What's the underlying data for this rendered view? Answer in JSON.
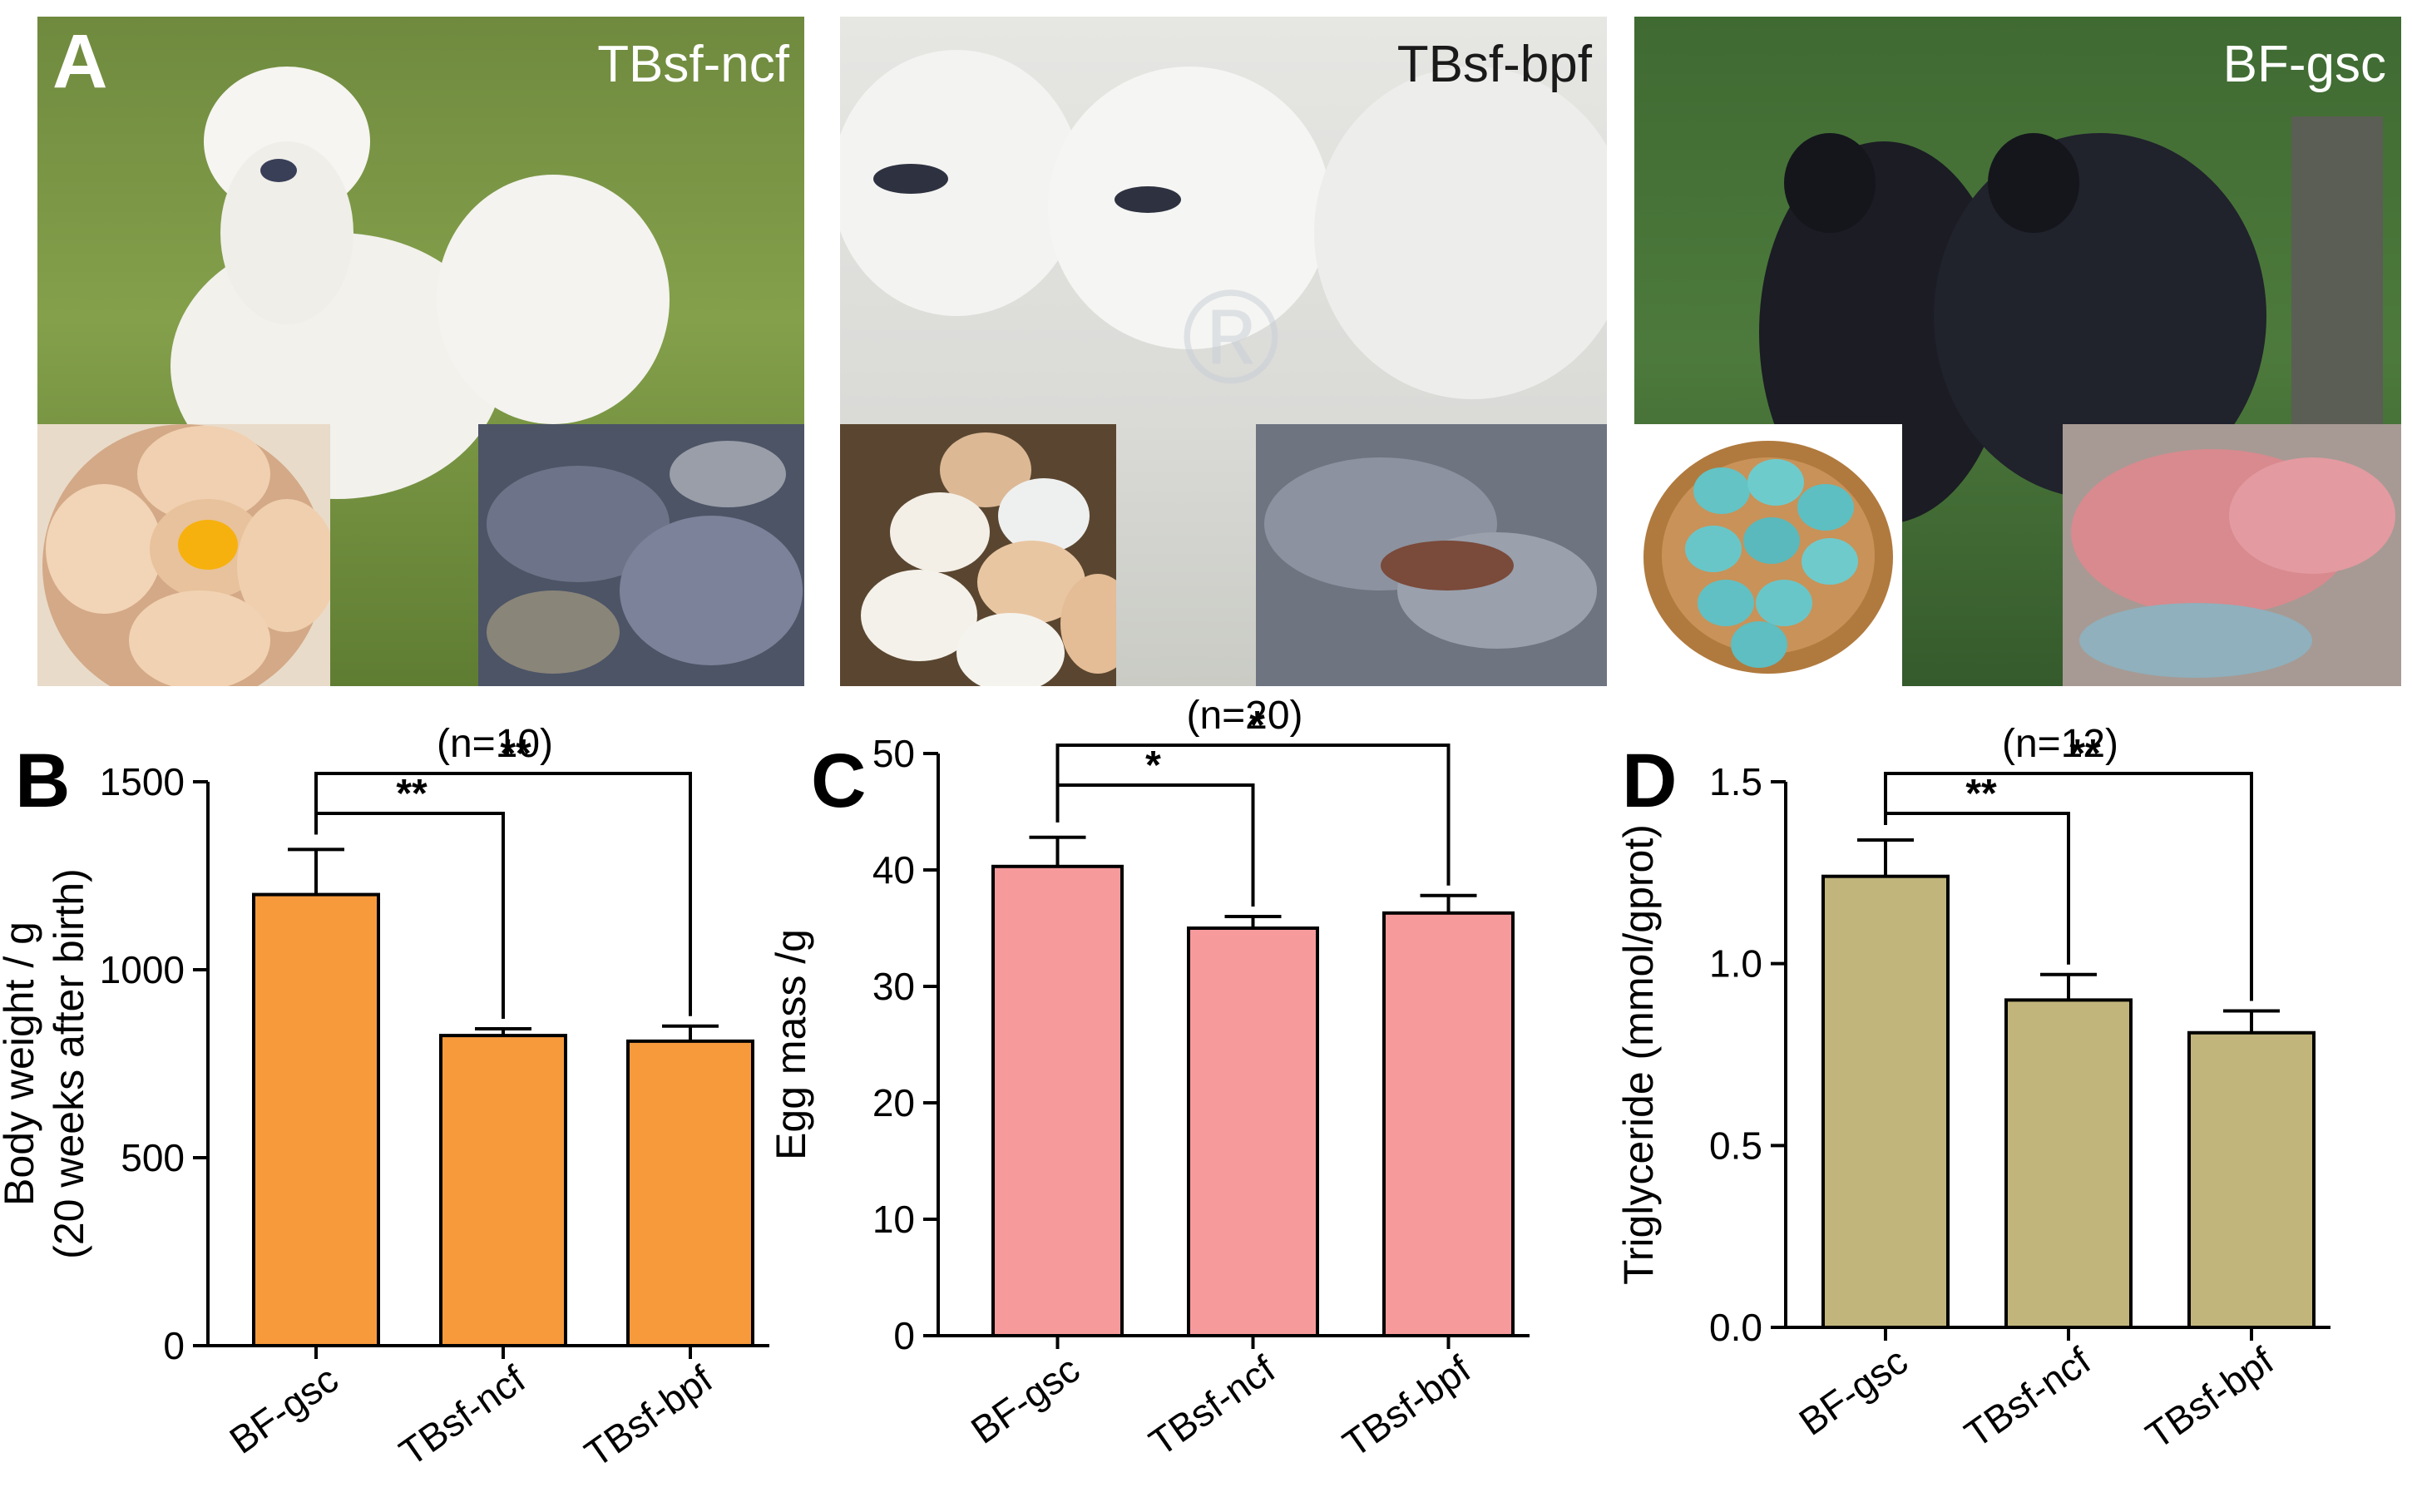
{
  "panel_a": {
    "letter": "A",
    "photos": [
      {
        "label": "TBsf-ncf",
        "bird": "white silkie chicken",
        "egg_inset": "light brown eggs in bowl",
        "meat_inset": "dark grey carcass"
      },
      {
        "label": "TBsf-bpf",
        "bird": "white silkie chickens flock",
        "egg_inset": "cream and white eggs in nest",
        "meat_inset": "grey-skinned carcass"
      },
      {
        "label": "BF-gsc",
        "bird": "black chickens",
        "egg_inset": "blue-green eggs in basket",
        "meat_inset": "pink meat"
      }
    ]
  },
  "colors": {
    "orange": "#f79a3c",
    "pink": "#f79a9c",
    "khaki": "#c2b57b"
  },
  "chart_data": [
    {
      "panel": "B",
      "type": "bar",
      "categories": [
        "BF-gsc",
        "TBsf-ncf",
        "TBsf-bpf"
      ],
      "values": [
        1200,
        825,
        810
      ],
      "errors": [
        120,
        18,
        40
      ],
      "ylabel_line1": "Body weight / g",
      "ylabel_line2": "(20 weeks after birth)",
      "ylim": [
        0,
        1500
      ],
      "yticks": [
        "0",
        "500",
        "1000",
        "1500"
      ],
      "n_label": "(n=10)",
      "comparisons": [
        {
          "from": 0,
          "to": 1,
          "label": "**"
        },
        {
          "from": 0,
          "to": 2,
          "label": "**"
        }
      ],
      "color": "#f79a3c"
    },
    {
      "panel": "C",
      "type": "bar",
      "categories": [
        "BF-gsc",
        "TBsf-ncf",
        "TBsf-bpf"
      ],
      "values": [
        40.3,
        35.0,
        36.3
      ],
      "errors": [
        2.5,
        1.0,
        1.5
      ],
      "ylabel_line1": "Egg mass /g",
      "ylim": [
        0,
        50
      ],
      "yticks": [
        "0",
        "10",
        "20",
        "30",
        "40",
        "50"
      ],
      "n_label": "(n=20)",
      "comparisons": [
        {
          "from": 0,
          "to": 1,
          "label": "*"
        },
        {
          "from": 0,
          "to": 2,
          "label": "*"
        }
      ],
      "color": "#f79a9c"
    },
    {
      "panel": "D",
      "type": "bar",
      "categories": [
        "BF-gsc",
        "TBsf-ncf",
        "TBsf-bpf"
      ],
      "values": [
        1.24,
        0.9,
        0.81
      ],
      "errors": [
        0.1,
        0.07,
        0.06
      ],
      "ylabel_line1": "Triglyceride (mmol/gprot)",
      "ylim": [
        0,
        1.5
      ],
      "yticks": [
        "0.0",
        "0.5",
        "1.0",
        "1.5"
      ],
      "n_label": "(n=12)",
      "comparisons": [
        {
          "from": 0,
          "to": 1,
          "label": "**"
        },
        {
          "from": 0,
          "to": 2,
          "label": "**"
        }
      ],
      "color": "#c2b57b"
    }
  ]
}
